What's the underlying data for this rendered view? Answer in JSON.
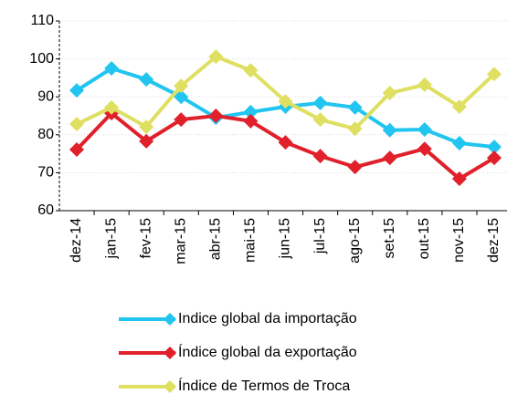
{
  "chart_data": {
    "type": "line",
    "categories": [
      "dez-14",
      "jan-15",
      "fev-15",
      "mar-15",
      "abr-15",
      "mai-15",
      "jun-15",
      "jul-15",
      "ago-15",
      "set-15",
      "out-15",
      "nov-15",
      "dez-15"
    ],
    "series": [
      {
        "name": "Indice global da importação",
        "color": "#22c5ef",
        "values": [
          91.7,
          97.5,
          94.6,
          90,
          84.5,
          86,
          87.4,
          88.4,
          87.2,
          81.2,
          81.4,
          77.8,
          76.8
        ]
      },
      {
        "name": "Índice global da exportação",
        "color": "#e0202a",
        "values": [
          76.1,
          85.7,
          78.3,
          84,
          85,
          83.6,
          78,
          74.4,
          71.5,
          73.9,
          76.3,
          68.4,
          73.9
        ]
      },
      {
        "name": "Índice de Termos de Troca",
        "color": "#dfdf62",
        "values": [
          82.8,
          87.2,
          82.1,
          92.9,
          100.6,
          97,
          88.8,
          84,
          81.6,
          91,
          93.2,
          87.4,
          96
        ]
      }
    ],
    "ylim": [
      60,
      110
    ],
    "yticks": [
      60,
      70,
      80,
      90,
      100,
      110
    ],
    "grid": true,
    "legend": "bottom"
  }
}
